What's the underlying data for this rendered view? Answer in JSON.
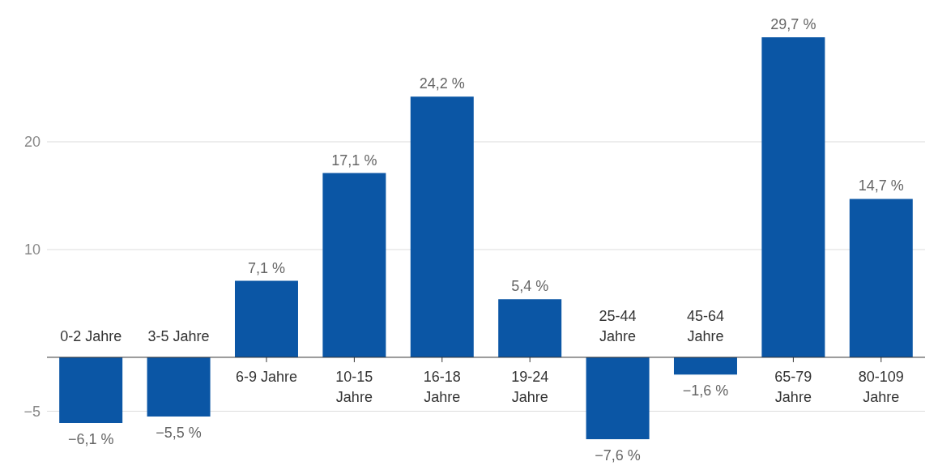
{
  "chart_data": {
    "type": "bar",
    "categories": [
      "0-2 Jahre",
      "3-5 Jahre",
      "6-9 Jahre",
      "10-15 Jahre",
      "16-18 Jahre",
      "19-24 Jahre",
      "25-44 Jahre",
      "45-64 Jahre",
      "65-79 Jahre",
      "80-109 Jahre"
    ],
    "values": [
      -6.1,
      -5.5,
      7.1,
      17.1,
      24.2,
      5.4,
      -7.6,
      -1.6,
      29.7,
      14.7
    ],
    "value_labels": [
      "−6,1 %",
      "−5,5 %",
      "7,1 %",
      "17,1 %",
      "24,2 %",
      "5,4 %",
      "−7,6 %",
      "−1,6 %",
      "29,7 %",
      "14,7 %"
    ],
    "color": "#0b56a5",
    "ylim": [
      -7.6,
      29.7
    ],
    "yticks": [
      -5,
      10,
      20
    ],
    "grid": "y"
  }
}
